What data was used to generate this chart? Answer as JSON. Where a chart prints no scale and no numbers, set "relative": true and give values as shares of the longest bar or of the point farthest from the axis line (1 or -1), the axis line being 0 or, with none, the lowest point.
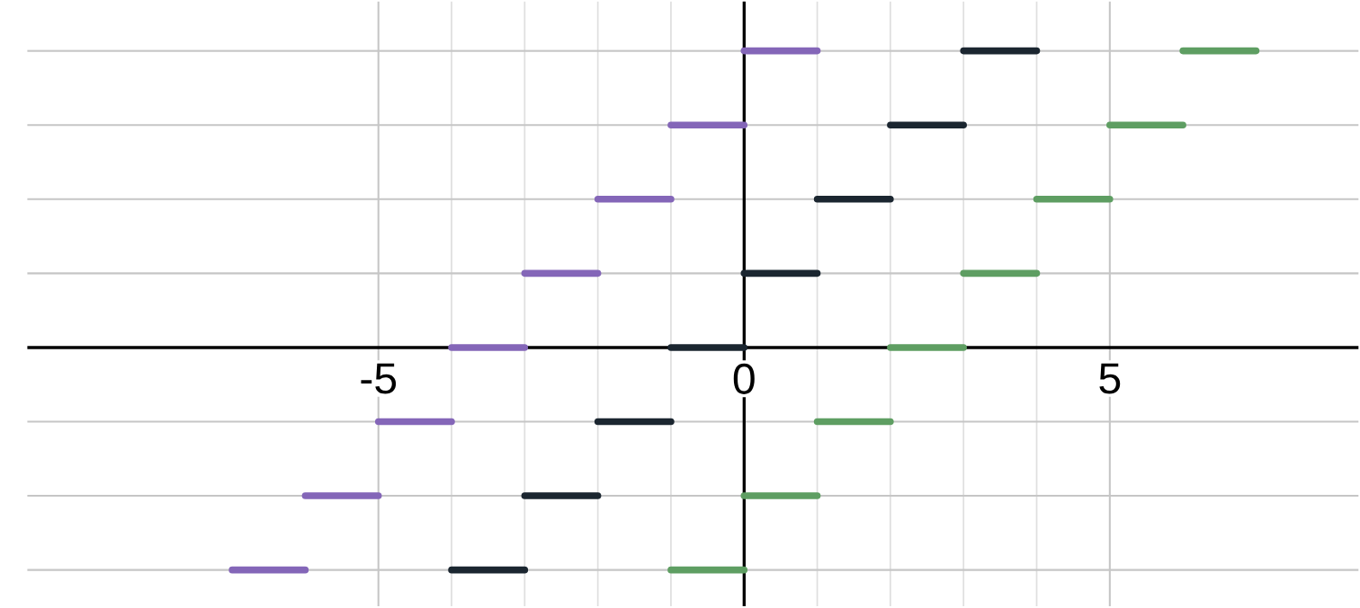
{
  "chart_data": {
    "type": "step",
    "relative": true,
    "grid": true,
    "xlim": [
      -9.8,
      8.4
    ],
    "xticks": [
      -5,
      0,
      5
    ],
    "tick_labels": "x",
    "series": [
      {
        "color": "#8466b8",
        "x": [
          -7,
          -6,
          -5,
          -4,
          -3,
          -2,
          -1,
          0,
          1
        ],
        "values": [
          -0.75,
          -0.5,
          -0.25,
          0,
          0.25,
          0.5,
          0.75,
          1,
          1
        ]
      },
      {
        "color": "#1b2630",
        "x": [
          -4,
          -3,
          -2,
          -1,
          0,
          1,
          2,
          3,
          4
        ],
        "values": [
          -0.75,
          -0.5,
          -0.25,
          0,
          0.25,
          0.5,
          0.75,
          1,
          1
        ]
      },
      {
        "color": "#5e9e62",
        "x": [
          -1,
          0,
          1,
          2,
          3,
          4,
          5,
          6,
          7
        ],
        "values": [
          -0.75,
          -0.5,
          -0.25,
          0,
          0.25,
          0.5,
          0.75,
          1,
          1
        ]
      }
    ]
  }
}
